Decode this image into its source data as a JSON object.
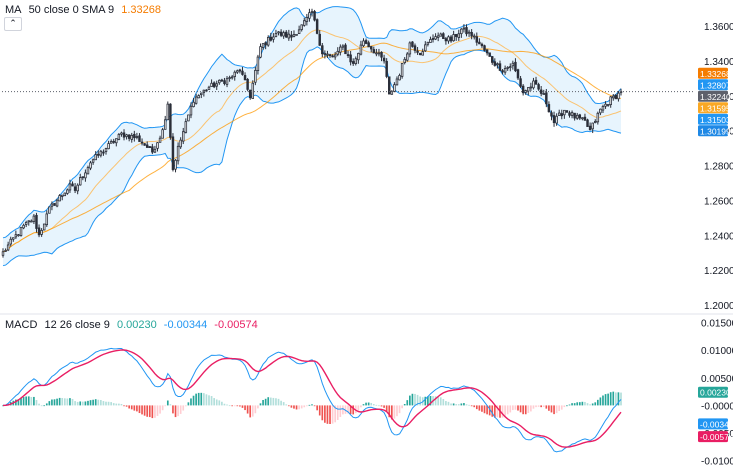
{
  "price_legend": {
    "indicator": "MA",
    "params": "50 close 0 SMA 9",
    "value": "1.33268"
  },
  "macd_legend": {
    "indicator": "MACD",
    "params": "12 26 close 9",
    "histogram_value": "0.00230",
    "macd_value": "-0.00344",
    "signal_value": "-0.00574"
  },
  "colors": {
    "up_bar": "#26a69a",
    "down_bar": "#ef5350",
    "up_bar_light": "#b2dfdb",
    "down_bar_light": "#ffcdd2",
    "candle": "#2a2e39",
    "bb_band": "#2196f3",
    "bb_fill": "#e3f2fd",
    "ma_line": "#ff9800",
    "macd_line": "#2196f3",
    "signal_line": "#e91e63",
    "ma_label": "#f57c00",
    "last_price_label": "#5d606b",
    "upper_band_label": "#2196f3",
    "mid_label": "#f9a825",
    "lower_band_label": "#1e88e5"
  },
  "chart_data": [
    {
      "type": "candlestick",
      "title": "",
      "yaxis_ticks": [
        "1.36000",
        "1.34000",
        "1.32000",
        "1.30000",
        "1.28000",
        "1.26000",
        "1.24000",
        "1.22000",
        "1.20000"
      ],
      "ylim": [
        1.196,
        1.375
      ],
      "series": [
        {
          "name": "MA 50 close 0 SMA 9",
          "last_value": 1.33268
        },
        {
          "name": "Bollinger upper",
          "last_value": 1.32807
        },
        {
          "name": "Bollinger middle",
          "last_value": 1.31595
        },
        {
          "name": "Bollinger lower",
          "last_value": 1.30199
        }
      ],
      "last_price": 1.3224,
      "price_labels": [
        {
          "key": "ma",
          "text": "1.33268",
          "value": 1.33268
        },
        {
          "key": "upper",
          "text": "1.32807",
          "value": 1.32807
        },
        {
          "key": "last",
          "text": "1.32240",
          "value": 1.3224
        },
        {
          "key": "mid",
          "text": "1.31595",
          "value": 1.31595
        },
        {
          "key": "basis",
          "text": "1.31503",
          "value": 1.31503
        },
        {
          "key": "lower",
          "text": "1.30199",
          "value": 1.30199
        }
      ],
      "close_anchors": [
        [
          0,
          1.23
        ],
        [
          4,
          1.238
        ],
        [
          8,
          1.245
        ],
        [
          12,
          1.25
        ],
        [
          14,
          1.24
        ],
        [
          18,
          1.255
        ],
        [
          22,
          1.262
        ],
        [
          26,
          1.268
        ],
        [
          28,
          1.266
        ],
        [
          30,
          1.272
        ],
        [
          34,
          1.282
        ],
        [
          40,
          1.29
        ],
        [
          46,
          1.298
        ],
        [
          52,
          1.296
        ],
        [
          58,
          1.288
        ],
        [
          62,
          1.3
        ],
        [
          64,
          1.316
        ],
        [
          66,
          1.278
        ],
        [
          68,
          1.29
        ],
        [
          74,
          1.318
        ],
        [
          80,
          1.325
        ],
        [
          88,
          1.33
        ],
        [
          92,
          1.335
        ],
        [
          96,
          1.32
        ],
        [
          100,
          1.348
        ],
        [
          106,
          1.356
        ],
        [
          112,
          1.354
        ],
        [
          116,
          1.36
        ],
        [
          120,
          1.368
        ],
        [
          124,
          1.345
        ],
        [
          128,
          1.342
        ],
        [
          132,
          1.348
        ],
        [
          136,
          1.338
        ],
        [
          140,
          1.352
        ],
        [
          144,
          1.346
        ],
        [
          148,
          1.34
        ],
        [
          150,
          1.32
        ],
        [
          154,
          1.333
        ],
        [
          158,
          1.35
        ],
        [
          162,
          1.345
        ],
        [
          168,
          1.355
        ],
        [
          174,
          1.352
        ],
        [
          178,
          1.358
        ],
        [
          182,
          1.355
        ],
        [
          186,
          1.348
        ],
        [
          190,
          1.34
        ],
        [
          194,
          1.335
        ],
        [
          198,
          1.338
        ],
        [
          202,
          1.322
        ],
        [
          206,
          1.327
        ],
        [
          210,
          1.32
        ],
        [
          214,
          1.305
        ],
        [
          218,
          1.312
        ],
        [
          222,
          1.308
        ],
        [
          226,
          1.305
        ],
        [
          228,
          1.3
        ],
        [
          232,
          1.312
        ],
        [
          236,
          1.318
        ],
        [
          240,
          1.322
        ]
      ],
      "bars": 241
    },
    {
      "type": "macd",
      "title": "",
      "yaxis_ticks": [
        "0.01500",
        "0.01000",
        "0.00500",
        "-0.00000",
        "-0.00500",
        "-0.01000"
      ],
      "ylim": [
        -0.0108,
        0.0162
      ],
      "series": [
        {
          "name": "MACD",
          "last_value": -0.00344
        },
        {
          "name": "Signal",
          "last_value": -0.00574
        },
        {
          "name": "Histogram",
          "last_value": 0.0023
        }
      ],
      "value_labels": [
        {
          "key": "hist",
          "text": "0.00230",
          "value": 0.0023
        },
        {
          "key": "macd",
          "text": "-0.00344",
          "value": -0.00344
        },
        {
          "key": "signal",
          "text": "-0.00574",
          "value": -0.00574
        }
      ]
    }
  ]
}
